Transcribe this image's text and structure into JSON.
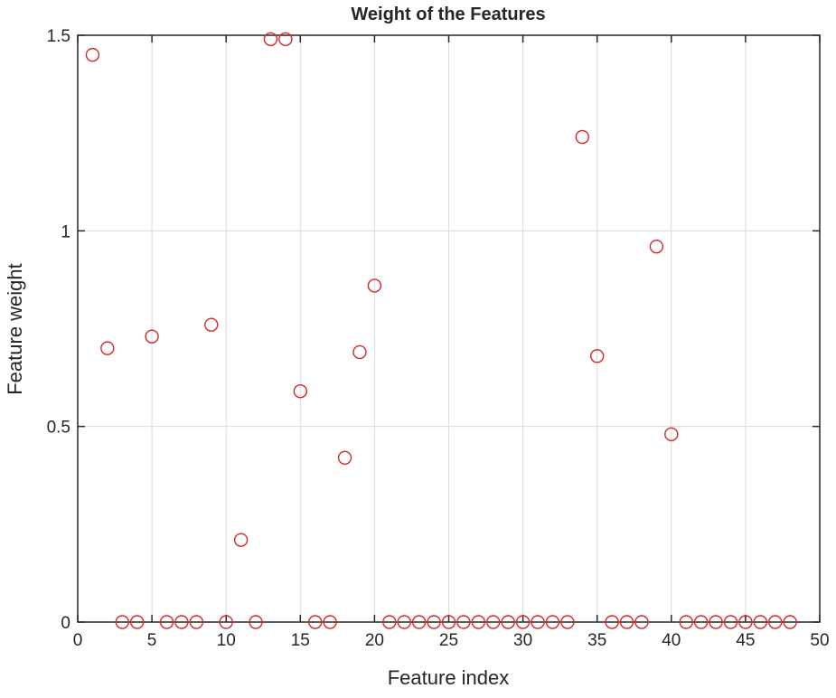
{
  "chart_data": {
    "type": "scatter",
    "title": "Weight of the Features",
    "xlabel": "Feature index",
    "ylabel": "Feature weight",
    "xlim": [
      0,
      50
    ],
    "ylim": [
      0,
      1.5
    ],
    "xticks": [
      0,
      5,
      10,
      15,
      20,
      25,
      30,
      35,
      40,
      45,
      50
    ],
    "yticks": [
      0,
      0.5,
      1,
      1.5
    ],
    "xtick_labels": [
      "0",
      "5",
      "10",
      "15",
      "20",
      "25",
      "30",
      "35",
      "40",
      "45",
      "50"
    ],
    "ytick_labels": [
      "0",
      "0.5",
      "1",
      "1.5"
    ],
    "grid": true,
    "marker": "open-circle",
    "marker_color": "#d62728",
    "x": [
      1,
      2,
      3,
      4,
      5,
      6,
      7,
      8,
      9,
      10,
      11,
      12,
      13,
      14,
      15,
      16,
      17,
      18,
      19,
      20,
      21,
      22,
      23,
      24,
      25,
      26,
      27,
      28,
      29,
      30,
      31,
      32,
      33,
      34,
      35,
      36,
      37,
      38,
      39,
      40,
      41,
      42,
      43,
      44,
      45,
      46,
      47,
      48
    ],
    "y": [
      1.45,
      0.7,
      0,
      0,
      0.73,
      0,
      0,
      0,
      0.76,
      0,
      0.21,
      0,
      1.49,
      1.49,
      0.59,
      0,
      0,
      0.42,
      0.69,
      0.86,
      0,
      0,
      0,
      0,
      0,
      0,
      0,
      0,
      0,
      0,
      0,
      0,
      0,
      1.24,
      0.68,
      0,
      0,
      0,
      0.96,
      0.48,
      0,
      0,
      0,
      0,
      0,
      0,
      0,
      0
    ]
  }
}
